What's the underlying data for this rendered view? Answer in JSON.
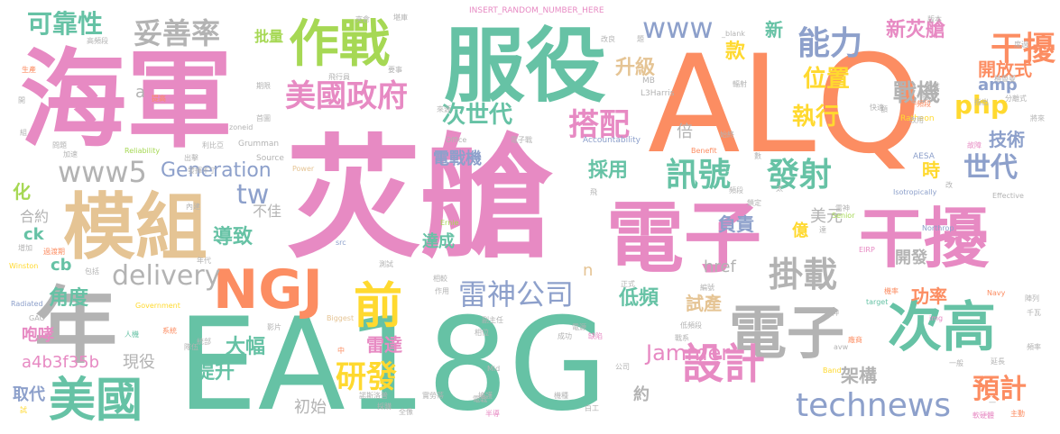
{
  "palette": {
    "pink": "#e78ac3",
    "orange": "#fc8d62",
    "green": "#66c2a5",
    "tan": "#e5c494",
    "blue": "#8da0cb",
    "gray": "#b3b3b3",
    "olive": "#a6d854",
    "yellow": "#ffd92f"
  },
  "words": [
    {
      "text": "苂艙",
      "color": "pink"
    },
    {
      "text": "EA18G",
      "color": "green"
    },
    {
      "text": "ALQ",
      "color": "orange"
    },
    {
      "text": "海軍",
      "color": "pink"
    },
    {
      "text": "服役",
      "color": "green"
    },
    {
      "text": "電子",
      "color": "pink"
    },
    {
      "text": "干擾",
      "color": "pink"
    },
    {
      "text": "模組",
      "color": "tan"
    },
    {
      "text": "年",
      "color": "gray"
    },
    {
      "text": "NGJ",
      "color": "orange"
    },
    {
      "text": "作戰",
      "color": "olive"
    },
    {
      "text": "前",
      "color": "yellow"
    },
    {
      "text": "次高",
      "color": "green"
    },
    {
      "text": "電子",
      "color": "gray"
    },
    {
      "text": "美國",
      "color": "green"
    },
    {
      "text": "設計",
      "color": "pink"
    },
    {
      "text": "美國政府",
      "color": "pink"
    },
    {
      "text": "能力",
      "color": "blue"
    },
    {
      "text": "干擾",
      "color": "orange"
    },
    {
      "text": "搭配",
      "color": "pink"
    },
    {
      "text": "掛載",
      "color": "gray"
    },
    {
      "text": "訊號",
      "color": "green"
    },
    {
      "text": "發射",
      "color": "green"
    },
    {
      "text": "研發",
      "color": "yellow"
    },
    {
      "text": "technews",
      "color": "blue"
    },
    {
      "text": "雷神公司",
      "color": "blue"
    },
    {
      "text": "www5",
      "color": "gray"
    },
    {
      "text": "www",
      "color": "blue"
    },
    {
      "text": "妥善率",
      "color": "gray"
    },
    {
      "text": "可靠性",
      "color": "green"
    },
    {
      "text": "delivery",
      "color": "gray"
    },
    {
      "text": "預計",
      "color": "orange"
    },
    {
      "text": "次世代",
      "color": "green"
    },
    {
      "text": "Generation",
      "color": "blue"
    },
    {
      "text": "世代",
      "color": "blue"
    },
    {
      "text": "Jammer",
      "color": "pink"
    },
    {
      "text": "a4b3f35b",
      "color": "pink"
    },
    {
      "text": "php",
      "color": "yellow"
    },
    {
      "text": "tw",
      "color": "blue"
    },
    {
      "text": "位置",
      "color": "yellow"
    },
    {
      "text": "執行",
      "color": "yellow"
    },
    {
      "text": "戰機",
      "color": "gray"
    },
    {
      "text": "新苂艙",
      "color": "pink"
    },
    {
      "text": "開放式",
      "color": "orange"
    },
    {
      "text": "升級",
      "color": "tan"
    },
    {
      "text": "款",
      "color": "yellow"
    },
    {
      "text": "新",
      "color": "green"
    },
    {
      "text": "技術",
      "color": "blue"
    },
    {
      "text": "採用",
      "color": "green"
    },
    {
      "text": "時",
      "color": "yellow"
    },
    {
      "text": "倍",
      "color": "gray"
    },
    {
      "text": "電戰機",
      "color": "blue"
    },
    {
      "text": "架構",
      "color": "gray"
    },
    {
      "text": "負責",
      "color": "blue"
    },
    {
      "text": "美元",
      "color": "gray"
    },
    {
      "text": "億",
      "color": "yellow"
    },
    {
      "text": "導致",
      "color": "green"
    },
    {
      "text": "大幅",
      "color": "green"
    },
    {
      "text": "角度",
      "color": "green"
    },
    {
      "text": "雷達",
      "color": "pink"
    },
    {
      "text": "提升",
      "color": "green"
    },
    {
      "text": "低頻",
      "color": "green"
    },
    {
      "text": "試產",
      "color": "tan"
    },
    {
      "text": "功率",
      "color": "orange"
    },
    {
      "text": "開發",
      "color": "gray"
    },
    {
      "text": "咆哮",
      "color": "pink"
    },
    {
      "text": "現役",
      "color": "gray"
    },
    {
      "text": "取代",
      "color": "blue"
    },
    {
      "text": "達成",
      "color": "green"
    },
    {
      "text": "初始",
      "color": "gray"
    },
    {
      "text": "約",
      "color": "gray"
    },
    {
      "text": "批量",
      "color": "olive"
    },
    {
      "text": "不佳",
      "color": "gray"
    },
    {
      "text": "合約",
      "color": "gray"
    },
    {
      "text": "化",
      "color": "olive"
    },
    {
      "text": "ck",
      "color": "green"
    },
    {
      "text": "cb",
      "color": "green"
    },
    {
      "text": "amp",
      "color": "blue"
    },
    {
      "text": "href",
      "color": "gray"
    },
    {
      "text": "n",
      "color": "tan"
    },
    {
      "text": "a",
      "color": "gray"
    },
    {
      "text": "INSERT_RANDOM_NUMBER_HERE",
      "color": "pink"
    },
    {
      "text": "L3Harris",
      "color": "gray"
    },
    {
      "text": "MB",
      "color": "gray"
    },
    {
      "text": "_blank",
      "color": "gray"
    },
    {
      "text": "Ratheon",
      "color": "yellow"
    },
    {
      "text": "AESA",
      "color": "blue"
    },
    {
      "text": "zoneid",
      "color": "gray"
    },
    {
      "text": "Grumman",
      "color": "gray"
    },
    {
      "text": "Source",
      "color": "gray"
    },
    {
      "text": "Power",
      "color": "tan"
    },
    {
      "text": "Office",
      "color": "gray"
    },
    {
      "text": "Accountability",
      "color": "blue"
    },
    {
      "text": "Benefit",
      "color": "orange"
    },
    {
      "text": "Reliability",
      "color": "olive"
    },
    {
      "text": "Isotropically",
      "color": "blue"
    },
    {
      "text": "Effective",
      "color": "gray"
    },
    {
      "text": "Senior",
      "color": "olive"
    },
    {
      "text": "Northrop",
      "color": "blue"
    },
    {
      "text": "Winston",
      "color": "yellow"
    },
    {
      "text": "Radiated",
      "color": "blue"
    },
    {
      "text": "Government",
      "color": "yellow"
    },
    {
      "text": "GAO",
      "color": "gray"
    },
    {
      "text": "Biggest",
      "color": "tan"
    },
    {
      "text": "Mid",
      "color": "gray"
    },
    {
      "text": "Band",
      "color": "yellow"
    },
    {
      "text": "Ernie",
      "color": "olive"
    },
    {
      "text": "Navy",
      "color": "orange"
    },
    {
      "text": "target",
      "color": "green"
    },
    {
      "text": "img",
      "color": "pink"
    },
    {
      "text": "src",
      "color": "blue"
    },
    {
      "text": "avw",
      "color": "gray"
    },
    {
      "text": "EIRP",
      "color": "pink"
    },
    {
      "text": "一般",
      "color": "gray"
    },
    {
      "text": "試",
      "color": "yellow"
    },
    {
      "text": "中",
      "color": "orange"
    },
    {
      "text": "主動",
      "color": "orange"
    },
    {
      "text": "延長",
      "color": "gray"
    },
    {
      "text": "頻率",
      "color": "gray"
    },
    {
      "text": "陣列",
      "color": "gray"
    },
    {
      "text": "千瓦",
      "color": "gray"
    },
    {
      "text": "軟硬體",
      "color": "pink"
    },
    {
      "text": "廠商",
      "color": "orange"
    },
    {
      "text": "精神",
      "color": "gray"
    },
    {
      "text": "機種",
      "color": "gray"
    },
    {
      "text": "白工",
      "color": "gray"
    },
    {
      "text": "全像",
      "color": "gray"
    },
    {
      "text": "電源",
      "color": "gray"
    },
    {
      "text": "電戰",
      "color": "gray"
    },
    {
      "text": "採購",
      "color": "gray"
    },
    {
      "text": "半導",
      "color": "pink"
    },
    {
      "text": "實勞蒂",
      "color": "gray"
    },
    {
      "text": "諾斯洛普",
      "color": "gray"
    },
    {
      "text": "戰系",
      "color": "gray"
    },
    {
      "text": "副主任",
      "color": "gray"
    },
    {
      "text": "低頻段",
      "color": "gray"
    },
    {
      "text": "相位",
      "color": "gray"
    },
    {
      "text": "掩護",
      "color": "gray"
    },
    {
      "text": "成功",
      "color": "gray"
    },
    {
      "text": "公司",
      "color": "gray"
    },
    {
      "text": "缺陷",
      "color": "pink"
    },
    {
      "text": "影片",
      "color": "gray"
    },
    {
      "text": "隊伍",
      "color": "gray"
    },
    {
      "text": "統部",
      "color": "gray"
    },
    {
      "text": "人機",
      "color": "green"
    },
    {
      "text": "系統",
      "color": "orange"
    },
    {
      "text": "作用",
      "color": "gray"
    },
    {
      "text": "相較",
      "color": "gray"
    },
    {
      "text": "測試",
      "color": "gray"
    },
    {
      "text": "正式",
      "color": "gray"
    },
    {
      "text": "編號",
      "color": "gray"
    },
    {
      "text": "年代",
      "color": "gray"
    },
    {
      "text": "包括",
      "color": "gray"
    },
    {
      "text": "過渡期",
      "color": "orange"
    },
    {
      "text": "增加",
      "color": "gray"
    },
    {
      "text": "內建",
      "color": "gray"
    },
    {
      "text": "發揮不了",
      "color": "gray"
    },
    {
      "text": "出擊",
      "color": "gray"
    },
    {
      "text": "利比亞",
      "color": "gray"
    },
    {
      "text": "加速",
      "color": "gray"
    },
    {
      "text": "問題",
      "color": "gray"
    },
    {
      "text": "組",
      "color": "gray"
    },
    {
      "text": "高頻段",
      "color": "gray"
    },
    {
      "text": "生產",
      "color": "orange"
    },
    {
      "text": "開",
      "color": "gray"
    },
    {
      "text": "提高",
      "color": "orange"
    },
    {
      "text": "期限",
      "color": "gray"
    },
    {
      "text": "首圖",
      "color": "gray"
    },
    {
      "text": "來源",
      "color": "gray"
    },
    {
      "text": "飛行員",
      "color": "gray"
    },
    {
      "text": "要事",
      "color": "gray"
    },
    {
      "text": "夾倉",
      "color": "gray"
    },
    {
      "text": "電子戰",
      "color": "gray"
    },
    {
      "text": "堪庫",
      "color": "gray"
    },
    {
      "text": "改良",
      "color": "gray"
    },
    {
      "text": "版本",
      "color": "gray"
    },
    {
      "text": "度過",
      "color": "gray"
    },
    {
      "text": "格魯曼",
      "color": "gray"
    },
    {
      "text": "彈性",
      "color": "gray"
    },
    {
      "text": "中頻段",
      "color": "orange"
    },
    {
      "text": "特定",
      "color": "gray"
    },
    {
      "text": "指出",
      "color": "gray"
    },
    {
      "text": "分離式",
      "color": "gray"
    },
    {
      "text": "輻射",
      "color": "gray"
    },
    {
      "text": "快速",
      "color": "gray"
    },
    {
      "text": "改用",
      "color": "gray"
    },
    {
      "text": "將來",
      "color": "gray"
    },
    {
      "text": "故障",
      "color": "pink"
    },
    {
      "text": "飛",
      "color": "gray"
    },
    {
      "text": "頻段",
      "color": "gray"
    },
    {
      "text": "達",
      "color": "gray"
    },
    {
      "text": "始終",
      "color": "gray"
    },
    {
      "text": "數",
      "color": "gray"
    },
    {
      "text": "太",
      "color": "gray"
    },
    {
      "text": "額",
      "color": "gray"
    },
    {
      "text": "改",
      "color": "gray"
    },
    {
      "text": "題",
      "color": "gray"
    },
    {
      "text": "鎖定",
      "color": "gray"
    },
    {
      "text": "雷神",
      "color": "gray"
    },
    {
      "text": "機率",
      "color": "orange"
    },
    {
      "text": "一",
      "color": "gray"
    }
  ]
}
